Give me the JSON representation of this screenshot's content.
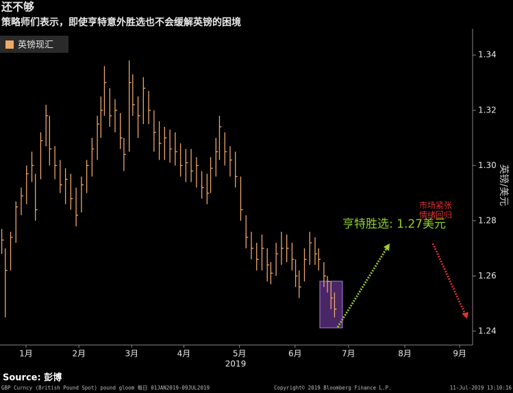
{
  "chart_data": {
    "type": "hlc",
    "title": "还不够",
    "subtitle": "策略师们表示，即使亨特意外胜选也不会缓解英镑的困境",
    "legend": "英镑现汇",
    "color": "#f0a868",
    "y_label": "英镑/美元",
    "x_label": "2019",
    "annotations": [
      "亨特胜选: 1.27美元",
      "市场紧张",
      "情绪回归"
    ],
    "source": "Source: 彭博",
    "footer_left": "GBP Curncy (British Pound Spot) pound gloom  每日 01JAN2019-09JUL2019",
    "footer_center": "Copyright© 2019 Bloomberg Finance L.P.",
    "footer_right": "11-Jul-2019 13:10:16",
    "xlim": [
      0,
      267
    ],
    "xticks": [
      {
        "value": 14.7,
        "label": "1月"
      },
      {
        "value": 44.6,
        "label": "2月"
      },
      {
        "value": 74.4,
        "label": "3月"
      },
      {
        "value": 103.9,
        "label": "4月"
      },
      {
        "value": 135.3,
        "label": "5月"
      },
      {
        "value": 166.7,
        "label": "6月"
      },
      {
        "value": 196.9,
        "label": "7月"
      },
      {
        "value": 228.7,
        "label": "8月"
      },
      {
        "value": 259.7,
        "label": "9月"
      }
    ],
    "ylim": [
      1.235,
      1.3495
    ],
    "yticks": [
      1.24,
      1.26,
      1.28,
      {
        "value": 1.3,
        "label": "1.30"
      },
      1.32,
      1.34
    ],
    "x": [
      1,
      3,
      6,
      9,
      12,
      15,
      18,
      20,
      23,
      26,
      28,
      31,
      34,
      37,
      40,
      43,
      46,
      49,
      52,
      55,
      57,
      59,
      62,
      65,
      68,
      70,
      73,
      75,
      78,
      81,
      84,
      87,
      90,
      93,
      96,
      99,
      102,
      105,
      108,
      111,
      114,
      117,
      119,
      122,
      124,
      127,
      130,
      133,
      136,
      139,
      142,
      145,
      148,
      151,
      153,
      156,
      159,
      162,
      165,
      167,
      169,
      172,
      175,
      178,
      180,
      183,
      185,
      187,
      189
    ],
    "high": [
      1.277,
      1.27,
      1.276,
      1.287,
      1.292,
      1.3,
      1.305,
      1.297,
      1.312,
      1.322,
      1.318,
      1.307,
      1.302,
      1.299,
      1.297,
      1.292,
      1.296,
      1.302,
      1.31,
      1.318,
      1.325,
      1.336,
      1.328,
      1.324,
      1.319,
      1.31,
      1.338,
      1.333,
      1.325,
      1.332,
      1.327,
      1.32,
      1.316,
      1.314,
      1.313,
      1.312,
      1.308,
      1.306,
      1.306,
      1.303,
      1.298,
      1.297,
      1.303,
      1.31,
      1.318,
      1.312,
      1.307,
      1.305,
      1.296,
      1.282,
      1.276,
      1.272,
      1.275,
      1.27,
      1.265,
      1.272,
      1.276,
      1.275,
      1.272,
      1.266,
      1.262,
      1.27,
      1.276,
      1.274,
      1.27,
      1.265,
      1.26,
      1.258,
      1.254
    ],
    "low": [
      1.268,
      1.245,
      1.262,
      1.272,
      1.282,
      1.286,
      1.294,
      1.28,
      1.295,
      1.307,
      1.3,
      1.295,
      1.29,
      1.286,
      1.284,
      1.278,
      1.283,
      1.29,
      1.296,
      1.302,
      1.31,
      1.318,
      1.314,
      1.312,
      1.306,
      1.298,
      1.305,
      1.318,
      1.31,
      1.315,
      1.315,
      1.305,
      1.302,
      1.302,
      1.301,
      1.3,
      1.296,
      1.294,
      1.294,
      1.292,
      1.288,
      1.286,
      1.29,
      1.296,
      1.302,
      1.3,
      1.296,
      1.292,
      1.28,
      1.27,
      1.266,
      1.262,
      1.262,
      1.258,
      1.257,
      1.26,
      1.264,
      1.265,
      1.262,
      1.256,
      1.252,
      1.258,
      1.264,
      1.264,
      1.262,
      1.256,
      1.254,
      1.248,
      1.245
    ],
    "close": [
      1.273,
      1.262,
      1.274,
      1.285,
      1.289,
      1.297,
      1.3,
      1.284,
      1.309,
      1.318,
      1.306,
      1.3,
      1.293,
      1.295,
      1.288,
      1.282,
      1.293,
      1.3,
      1.306,
      1.315,
      1.32,
      1.33,
      1.318,
      1.32,
      1.31,
      1.304,
      1.33,
      1.322,
      1.318,
      1.328,
      1.32,
      1.312,
      1.308,
      1.31,
      1.306,
      1.305,
      1.3,
      1.301,
      1.298,
      1.3,
      1.292,
      1.29,
      1.299,
      1.305,
      1.314,
      1.305,
      1.302,
      1.296,
      1.284,
      1.274,
      1.27,
      1.266,
      1.27,
      1.264,
      1.261,
      1.268,
      1.27,
      1.27,
      1.266,
      1.26,
      1.256,
      1.266,
      1.272,
      1.268,
      1.266,
      1.26,
      1.258,
      1.252,
      1.248
    ]
  }
}
